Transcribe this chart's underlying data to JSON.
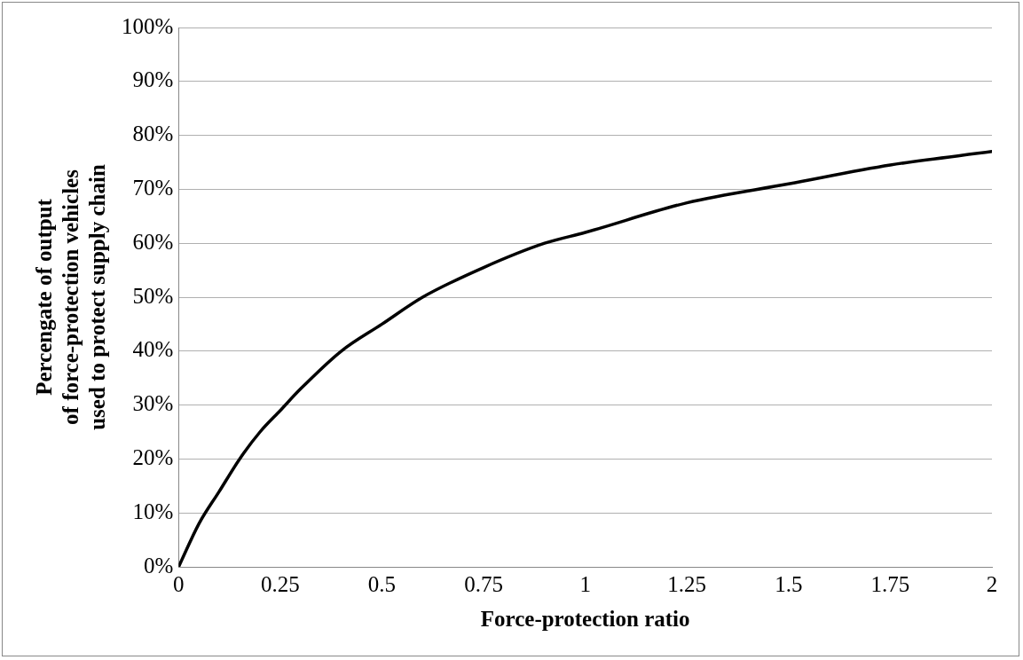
{
  "chart_data": {
    "type": "line",
    "xlabel": "Force-protection ratio",
    "ylabel": "Percengate of output\nof force-protection vehicles\nused to protect supply chain",
    "x": [
      0,
      0.05,
      0.1,
      0.15,
      0.2,
      0.25,
      0.3,
      0.4,
      0.5,
      0.6,
      0.75,
      0.9,
      1,
      1.25,
      1.5,
      1.75,
      2
    ],
    "series": [
      {
        "color": "#000000",
        "values": [
          0,
          8,
          14,
          20,
          25,
          29,
          33,
          40,
          45,
          50,
          55.5,
          60,
          62,
          67.5,
          71,
          74.5,
          77
        ]
      }
    ],
    "xlim": [
      0,
      2
    ],
    "xticks": [
      0,
      0.25,
      0.5,
      0.75,
      1,
      1.25,
      1.5,
      1.75,
      2
    ],
    "ylim": [
      0,
      100
    ],
    "yticks": [
      {
        "value": 0,
        "label": "0%"
      },
      {
        "value": 10,
        "label": "10%"
      },
      {
        "value": 20,
        "label": "20%"
      },
      {
        "value": 30,
        "label": "30%"
      },
      {
        "value": 40,
        "label": "40%"
      },
      {
        "value": 50,
        "label": "50%"
      },
      {
        "value": 60,
        "label": "60%"
      },
      {
        "value": 70,
        "label": "70%"
      },
      {
        "value": 80,
        "label": "80%"
      },
      {
        "value": 90,
        "label": "90%"
      },
      {
        "value": 100,
        "label": "100%"
      }
    ],
    "grid": "y",
    "legend": false,
    "marker": "none",
    "line_style": "solid"
  }
}
